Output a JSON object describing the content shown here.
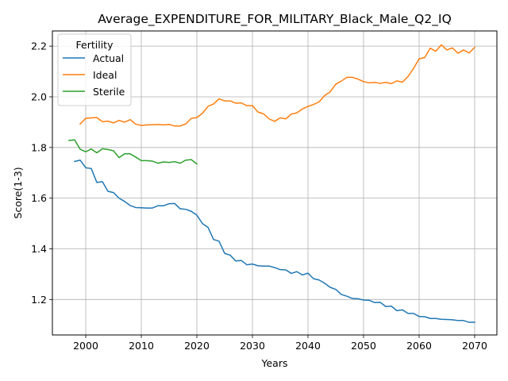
{
  "chart_data": {
    "type": "line",
    "title": "Average_EXPENDITURE_FOR_MILITARY_Black_Male_Q2_IQ",
    "xlabel": "Years",
    "ylabel": "Score(1-3)",
    "xlim": [
      1994,
      2074
    ],
    "ylim": [
      1.06,
      2.26
    ],
    "xticks": [
      2000,
      2010,
      2020,
      2030,
      2040,
      2050,
      2060,
      2070
    ],
    "yticks": [
      1.2,
      1.4,
      1.6,
      1.8,
      2.0,
      2.2
    ],
    "ytick_labels": [
      "1.2",
      "1.4",
      "1.6",
      "1.8",
      "2.0",
      "2.2"
    ],
    "grid": true,
    "legend": {
      "title": "Fertility",
      "position": "upper-left"
    },
    "series": [
      {
        "name": "Actual",
        "color": "#1f77b4",
        "x": [
          1998,
          1999,
          2000,
          2001,
          2002,
          2003,
          2004,
          2005,
          2006,
          2007,
          2008,
          2009,
          2010,
          2011,
          2012,
          2013,
          2014,
          2015,
          2016,
          2017,
          2018,
          2019,
          2020,
          2021,
          2022,
          2023,
          2024,
          2025,
          2026,
          2027,
          2028,
          2029,
          2030,
          2031,
          2032,
          2033,
          2034,
          2035,
          2036,
          2037,
          2038,
          2039,
          2040,
          2041,
          2042,
          2043,
          2044,
          2045,
          2046,
          2047,
          2048,
          2049,
          2050,
          2051,
          2052,
          2053,
          2054,
          2055,
          2056,
          2057,
          2058,
          2059,
          2060,
          2061,
          2062,
          2063,
          2064,
          2065,
          2066,
          2067,
          2068,
          2069,
          2070
        ],
        "values": [
          1.745,
          1.75,
          1.72,
          1.717,
          1.662,
          1.665,
          1.627,
          1.622,
          1.6,
          1.587,
          1.571,
          1.563,
          1.562,
          1.561,
          1.561,
          1.57,
          1.57,
          1.578,
          1.579,
          1.558,
          1.556,
          1.548,
          1.533,
          1.5,
          1.485,
          1.437,
          1.43,
          1.382,
          1.375,
          1.352,
          1.354,
          1.337,
          1.34,
          1.333,
          1.332,
          1.332,
          1.326,
          1.318,
          1.317,
          1.303,
          1.31,
          1.297,
          1.304,
          1.282,
          1.277,
          1.264,
          1.248,
          1.24,
          1.22,
          1.213,
          1.204,
          1.203,
          1.198,
          1.197,
          1.188,
          1.189,
          1.172,
          1.174,
          1.156,
          1.159,
          1.145,
          1.145,
          1.133,
          1.132,
          1.125,
          1.125,
          1.122,
          1.121,
          1.12,
          1.117,
          1.117,
          1.11,
          1.11
        ]
      },
      {
        "name": "Ideal",
        "color": "#ff7f0e",
        "x": [
          1999,
          2000,
          2001,
          2002,
          2003,
          2004,
          2005,
          2006,
          2007,
          2008,
          2009,
          2010,
          2011,
          2012,
          2013,
          2014,
          2015,
          2016,
          2017,
          2018,
          2019,
          2020,
          2021,
          2022,
          2023,
          2024,
          2025,
          2026,
          2027,
          2028,
          2029,
          2030,
          2031,
          2032,
          2033,
          2034,
          2035,
          2036,
          2037,
          2038,
          2039,
          2040,
          2041,
          2042,
          2043,
          2044,
          2045,
          2046,
          2047,
          2048,
          2049,
          2050,
          2051,
          2052,
          2053,
          2054,
          2055,
          2056,
          2057,
          2058,
          2059,
          2060,
          2061,
          2062,
          2063,
          2064,
          2065,
          2066,
          2067,
          2068,
          2069,
          2070
        ],
        "values": [
          1.893,
          1.915,
          1.917,
          1.918,
          1.902,
          1.904,
          1.897,
          1.907,
          1.9,
          1.91,
          1.892,
          1.887,
          1.889,
          1.89,
          1.891,
          1.889,
          1.891,
          1.885,
          1.885,
          1.893,
          1.915,
          1.918,
          1.935,
          1.962,
          1.972,
          1.992,
          1.984,
          1.984,
          1.975,
          1.976,
          1.965,
          1.965,
          1.94,
          1.933,
          1.913,
          1.903,
          1.917,
          1.913,
          1.932,
          1.937,
          1.952,
          1.962,
          1.97,
          1.98,
          2.005,
          2.02,
          2.05,
          2.062,
          2.077,
          2.077,
          2.07,
          2.06,
          2.055,
          2.057,
          2.053,
          2.057,
          2.052,
          2.063,
          2.058,
          2.08,
          2.112,
          2.15,
          2.155,
          2.192,
          2.18,
          2.205,
          2.185,
          2.193,
          2.172,
          2.185,
          2.173,
          2.195
        ]
      },
      {
        "name": "Sterile",
        "color": "#2ca02c",
        "x": [
          1997,
          1998,
          1999,
          2000,
          2001,
          2002,
          2003,
          2004,
          2005,
          2006,
          2007,
          2008,
          2009,
          2010,
          2011,
          2012,
          2013,
          2014,
          2015,
          2016,
          2017,
          2018,
          2019,
          2020
        ],
        "values": [
          1.828,
          1.83,
          1.793,
          1.783,
          1.794,
          1.779,
          1.795,
          1.792,
          1.787,
          1.76,
          1.775,
          1.775,
          1.762,
          1.748,
          1.748,
          1.746,
          1.738,
          1.743,
          1.741,
          1.744,
          1.738,
          1.75,
          1.752,
          1.735
        ]
      }
    ]
  }
}
